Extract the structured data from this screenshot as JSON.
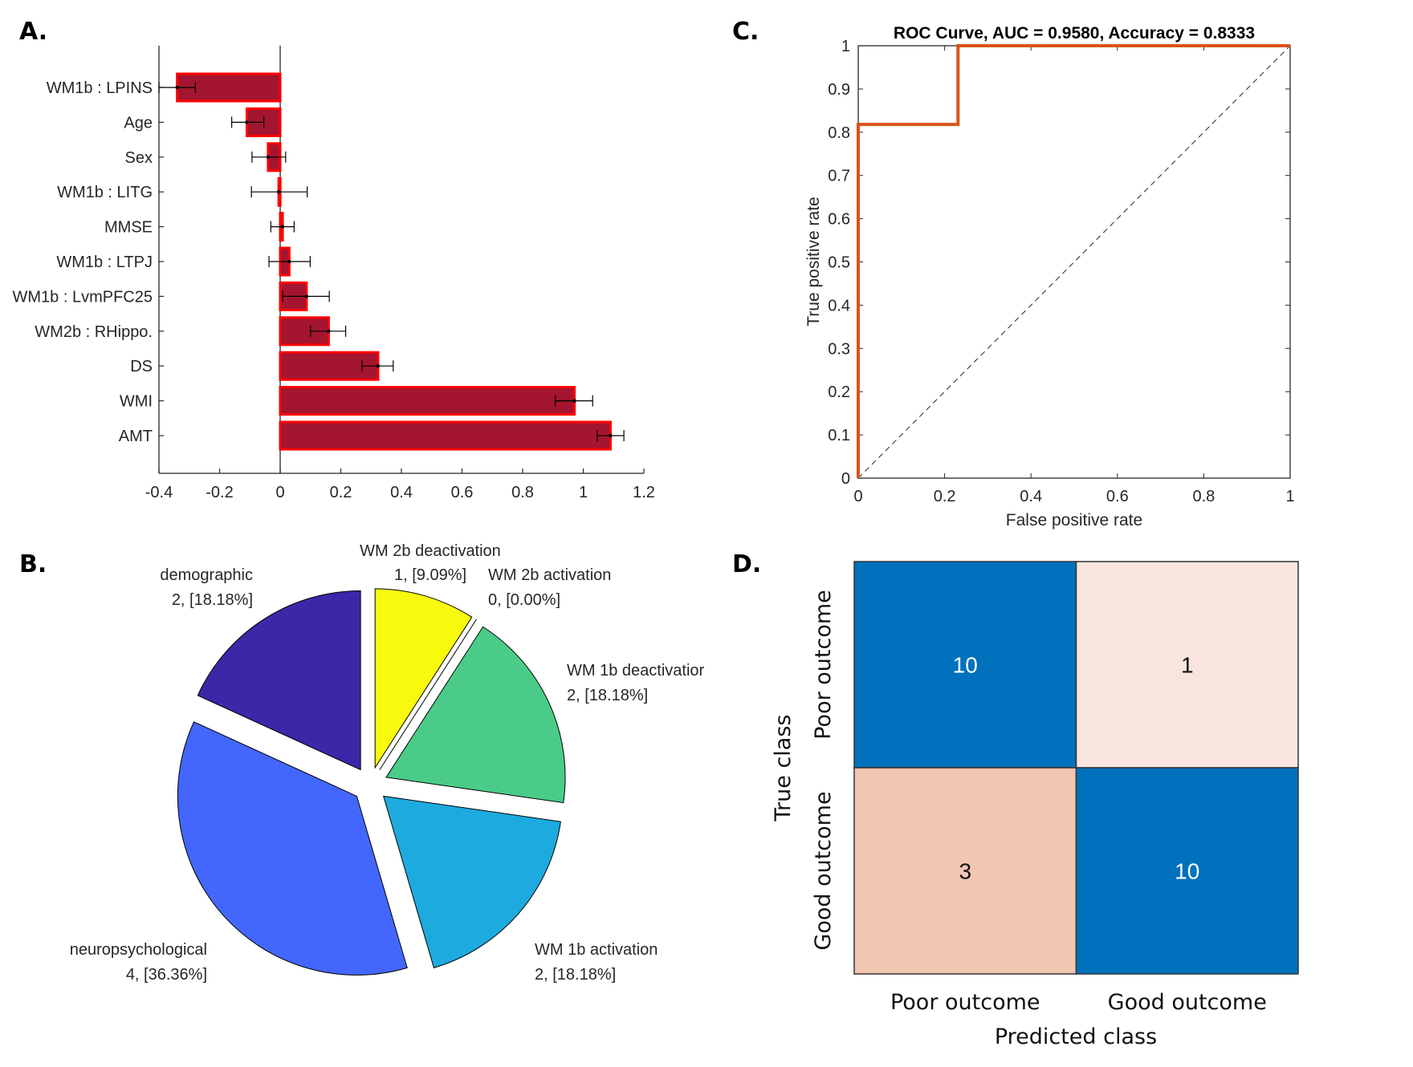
{
  "panels": {
    "a": "A.",
    "b": "B.",
    "c": "C.",
    "d": "D."
  },
  "chart_data": [
    {
      "id": "A",
      "type": "bar",
      "orientation": "horizontal",
      "title": "",
      "xlabel": "",
      "ylabel": "",
      "xlim": [
        -0.4,
        1.2
      ],
      "xticks": [
        -0.4,
        -0.2,
        0,
        0.2,
        0.4,
        0.6,
        0.8,
        1,
        1.2
      ],
      "xtick_labels": [
        "-0.4",
        "-0.2",
        "0",
        "0.2",
        "0.4",
        "0.6",
        "0.8",
        "1",
        "1.2"
      ],
      "categories": [
        "WM1b : LPINS",
        "Age",
        "Sex",
        "WM1b : LITG",
        "MMSE",
        "WM1b : LTPJ",
        "WM1b : LvmPFC25",
        "WM2b : RHippo.",
        "DS",
        "WMI",
        "AMT"
      ],
      "values": [
        -0.34,
        -0.11,
        -0.04,
        -0.005,
        0.008,
        0.03,
        0.087,
        0.16,
        0.323,
        0.971,
        1.09
      ],
      "error_low": [
        -0.4,
        -0.16,
        -0.093,
        -0.095,
        -0.031,
        -0.037,
        0.008,
        0.1,
        0.27,
        0.908,
        1.046
      ],
      "error_high": [
        -0.28,
        -0.054,
        0.018,
        0.089,
        0.046,
        0.099,
        0.162,
        0.216,
        0.373,
        1.031,
        1.134
      ],
      "colors": {
        "fill": "#A31530",
        "edge": "#FF0000"
      },
      "grid": false
    },
    {
      "id": "B",
      "type": "pie",
      "title": "",
      "slices": [
        {
          "label": "demographic",
          "value": 2,
          "text": "2, [18.18%]",
          "color": "#3D26A8"
        },
        {
          "label": "neuropsychological",
          "value": 4,
          "text": "4, [36.36%]",
          "color": "#4367FD"
        },
        {
          "label": "WM 1b activation",
          "value": 2,
          "text": "2, [18.18%]",
          "color": "#1DAADF"
        },
        {
          "label": "WM 1b deactivatior",
          "value": 2,
          "text": "2, [18.18%]",
          "color": "#4ACC88"
        },
        {
          "label": "WM 2b activation",
          "value": 0,
          "text": "0, [0.00%]",
          "color": "#9BD04A"
        },
        {
          "label": "WM 2b deactivation",
          "value": 1,
          "text": "1, [9.09%]",
          "color": "#F8FA0D"
        }
      ],
      "exploded": true
    },
    {
      "id": "C",
      "type": "line",
      "title": "ROC Curve, AUC = 0.9580, Accuracy = 0.8333",
      "xlabel": "False positive rate",
      "ylabel": "True positive rate",
      "xlim": [
        0,
        1
      ],
      "ylim": [
        0,
        1
      ],
      "xticks": [
        0,
        0.2,
        0.4,
        0.6,
        0.8,
        1
      ],
      "xtick_labels": [
        "0",
        "0.2",
        "0.4",
        "0.6",
        "0.8",
        "1"
      ],
      "yticks": [
        0,
        0.1,
        0.2,
        0.3,
        0.4,
        0.5,
        0.6,
        0.7,
        0.8,
        0.9,
        1
      ],
      "ytick_labels": [
        "0",
        "0.1",
        "0.2",
        "0.3",
        "0.4",
        "0.5",
        "0.6",
        "0.7",
        "0.8",
        "0.9",
        "1"
      ],
      "series": [
        {
          "name": "ROC",
          "color": "#D95319",
          "x": [
            0,
            0,
            0.231,
            0.231,
            1
          ],
          "y": [
            0,
            0.818,
            0.818,
            1,
            1
          ]
        },
        {
          "name": "chance",
          "color": "#262626",
          "style": "dashed",
          "x": [
            0,
            1
          ],
          "y": [
            0,
            1
          ]
        }
      ],
      "grid": false
    },
    {
      "id": "D",
      "type": "heatmap",
      "title": "",
      "xlabel": "Predicted class",
      "ylabel": "True class",
      "x_categories": [
        "Poor outcome",
        "Good outcome"
      ],
      "y_categories": [
        "Poor outcome",
        "Good outcome"
      ],
      "values": [
        [
          10,
          1
        ],
        [
          3,
          10
        ]
      ],
      "cell_colors": [
        [
          "#0072BD",
          "#F9E5DE"
        ],
        [
          "#F1C6B2",
          "#0072BD"
        ]
      ],
      "text_colors": [
        [
          "#FFFFFF",
          "#111111"
        ],
        [
          "#111111",
          "#FFFFFF"
        ]
      ]
    }
  ]
}
